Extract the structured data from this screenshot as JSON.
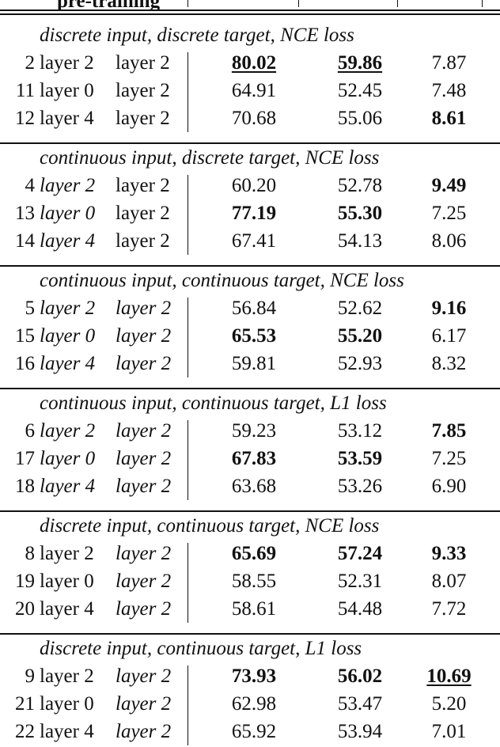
{
  "header": {
    "cut_text": "pre-training"
  },
  "sections": [
    {
      "title": "discrete input, discrete target, NCE loss",
      "rows": [
        {
          "id": "2",
          "in": "layer 2",
          "tg": "layer 2",
          "v1": "80.02",
          "v2": "59.86",
          "v3": "7.87"
        },
        {
          "id": "11",
          "in": "layer 0",
          "tg": "layer 2",
          "v1": "64.91",
          "v2": "52.45",
          "v3": "7.48"
        },
        {
          "id": "12",
          "in": "layer 4",
          "tg": "layer 2",
          "v1": "70.68",
          "v2": "55.06",
          "v3": "8.61"
        }
      ]
    },
    {
      "title": "continuous input, discrete target, NCE loss",
      "rows": [
        {
          "id": "4",
          "in": "layer 2",
          "tg": "layer 2",
          "v1": "60.20",
          "v2": "52.78",
          "v3": "9.49"
        },
        {
          "id": "13",
          "in": "layer 0",
          "tg": "layer 2",
          "v1": "77.19",
          "v2": "55.30",
          "v3": "7.25"
        },
        {
          "id": "14",
          "in": "layer 4",
          "tg": "layer 2",
          "v1": "67.41",
          "v2": "54.13",
          "v3": "8.06"
        }
      ]
    },
    {
      "title": "continuous input, continuous target, NCE loss",
      "rows": [
        {
          "id": "5",
          "in": "layer 2",
          "tg": "layer 2",
          "v1": "56.84",
          "v2": "52.62",
          "v3": "9.16"
        },
        {
          "id": "15",
          "in": "layer 0",
          "tg": "layer 2",
          "v1": "65.53",
          "v2": "55.20",
          "v3": "6.17"
        },
        {
          "id": "16",
          "in": "layer 4",
          "tg": "layer 2",
          "v1": "59.81",
          "v2": "52.93",
          "v3": "8.32"
        }
      ]
    },
    {
      "title": "continuous input, continuous target, L1 loss",
      "rows": [
        {
          "id": "6",
          "in": "layer 2",
          "tg": "layer 2",
          "v1": "59.23",
          "v2": "53.12",
          "v3": "7.85"
        },
        {
          "id": "17",
          "in": "layer 0",
          "tg": "layer 2",
          "v1": "67.83",
          "v2": "53.59",
          "v3": "7.25"
        },
        {
          "id": "18",
          "in": "layer 4",
          "tg": "layer 2",
          "v1": "63.68",
          "v2": "53.26",
          "v3": "6.90"
        }
      ]
    },
    {
      "title": "discrete input, continuous target, NCE loss",
      "rows": [
        {
          "id": "8",
          "in": "layer 2",
          "tg": "layer 2",
          "v1": "65.69",
          "v2": "57.24",
          "v3": "9.33"
        },
        {
          "id": "19",
          "in": "layer 0",
          "tg": "layer 2",
          "v1": "58.55",
          "v2": "52.31",
          "v3": "8.07"
        },
        {
          "id": "20",
          "in": "layer 4",
          "tg": "layer 2",
          "v1": "58.61",
          "v2": "54.48",
          "v3": "7.72"
        }
      ]
    },
    {
      "title": "discrete input, continuous target, L1 loss",
      "rows": [
        {
          "id": "9",
          "in": "layer 2",
          "tg": "layer 2",
          "v1": "73.93",
          "v2": "56.02",
          "v3": "10.69"
        },
        {
          "id": "21",
          "in": "layer 0",
          "tg": "layer 2",
          "v1": "62.98",
          "v2": "53.47",
          "v3": "5.20"
        },
        {
          "id": "22",
          "in": "layer 4",
          "tg": "layer 2",
          "v1": "65.92",
          "v2": "53.94",
          "v3": "7.01"
        }
      ]
    }
  ]
}
